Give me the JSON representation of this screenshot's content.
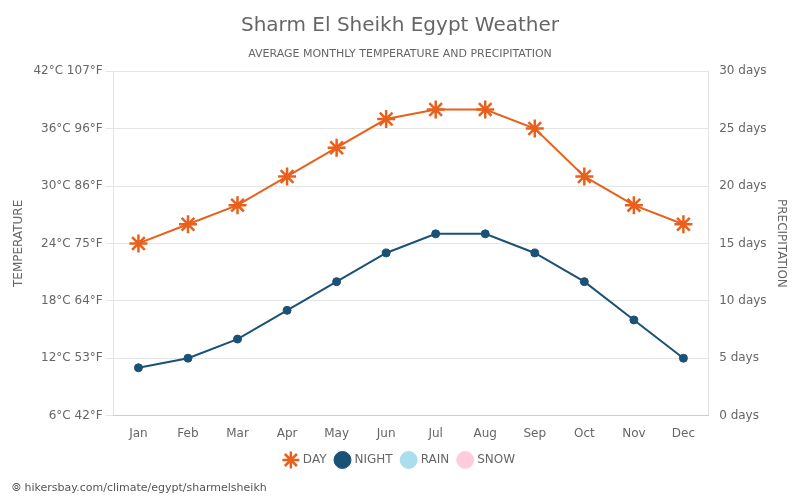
{
  "chart_data": {
    "type": "line",
    "title": "Sharm El Sheikh Egypt Weather",
    "subtitle": "AVERAGE MONTHLY TEMPERATURE AND PRECIPITATION",
    "ylabel": "TEMPERATURE",
    "y2label": "PRECIPITATION",
    "annotations": [
      "⦾ hikersbay.com/climate/egypt/sharmelsheikh"
    ],
    "categories": [
      "Jan",
      "Feb",
      "Mar",
      "Apr",
      "May",
      "Jun",
      "Jul",
      "Aug",
      "Sep",
      "Oct",
      "Nov",
      "Dec"
    ],
    "series": [
      {
        "name": "DAY",
        "color": "#E8601C",
        "marker": "star",
        "values": [
          24,
          26,
          28,
          31,
          34,
          37,
          38,
          38,
          36,
          31,
          28,
          26
        ]
      },
      {
        "name": "NIGHT",
        "color": "#1a5276",
        "marker": "circle",
        "values": [
          11,
          12,
          14,
          17,
          20,
          23,
          25,
          25,
          23,
          20,
          16,
          12
        ]
      },
      {
        "name": "RAIN",
        "type": "scatter",
        "color": "#aaddee",
        "marker": "circle",
        "axis": "y2",
        "values": [
          null,
          null,
          null,
          null,
          null,
          null,
          null,
          null,
          null,
          null,
          null,
          null
        ]
      },
      {
        "name": "SNOW",
        "type": "scatter",
        "color": "#ffccdd",
        "marker": "circle",
        "axis": "y2",
        "values": [
          null,
          null,
          null,
          null,
          null,
          null,
          null,
          null,
          null,
          null,
          null,
          null
        ]
      }
    ],
    "ylim": [
      6,
      42
    ],
    "yticks": [
      {
        "value": 6,
        "label": "6°C 42°F"
      },
      {
        "value": 12,
        "label": "12°C 53°F"
      },
      {
        "value": 18,
        "label": "18°C 64°F"
      },
      {
        "value": 24,
        "label": "24°C 75°F"
      },
      {
        "value": 30,
        "label": "30°C 86°F"
      },
      {
        "value": 36,
        "label": "36°C 96°F"
      },
      {
        "value": 42,
        "label": "42°C 107°F"
      }
    ],
    "y2lim": [
      0,
      30
    ],
    "y2ticks": [
      {
        "value": 0,
        "label": "0 days"
      },
      {
        "value": 5,
        "label": "5 days"
      },
      {
        "value": 10,
        "label": "10 days"
      },
      {
        "value": 15,
        "label": "15 days"
      },
      {
        "value": 20,
        "label": "20 days"
      },
      {
        "value": 25,
        "label": "25 days"
      },
      {
        "value": 30,
        "label": "30 days"
      }
    ],
    "grid": true,
    "legend": "bottom"
  }
}
